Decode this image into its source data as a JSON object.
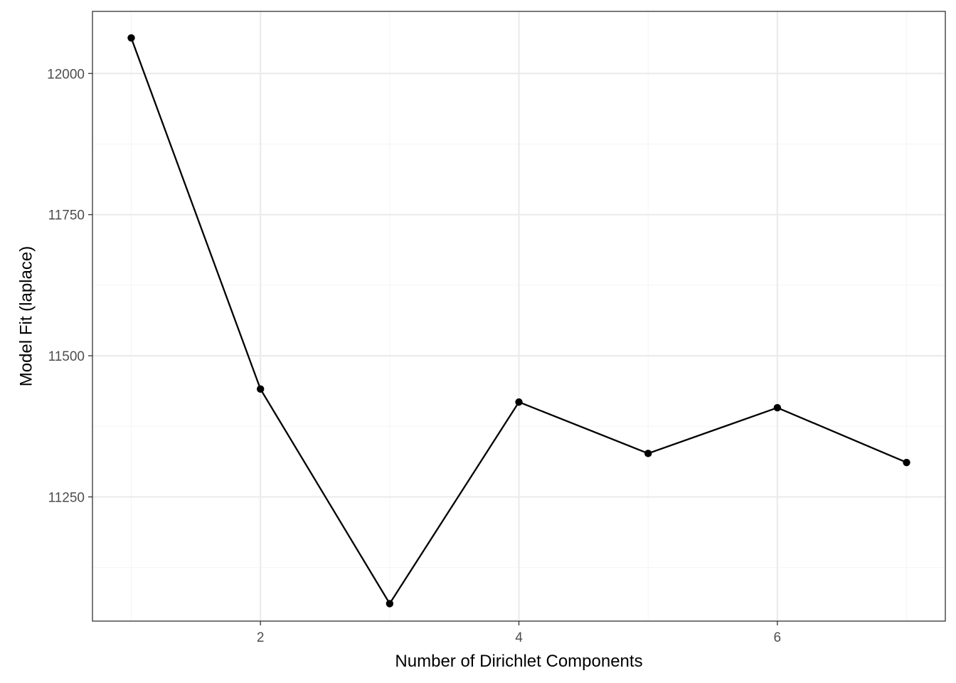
{
  "chart_data": {
    "type": "line",
    "title": "",
    "xlabel": "Number of Dirichlet Components",
    "ylabel": "Model Fit (laplace)",
    "x": [
      1,
      2,
      3,
      4,
      5,
      6,
      7
    ],
    "series": [
      {
        "values": [
          12063,
          11441,
          11061,
          11418,
          11327,
          11408,
          11311
        ]
      }
    ],
    "xlim": [
      0.7,
      7.3
    ],
    "ylim": [
      11030,
      12110
    ],
    "x_ticks": [
      2,
      4,
      6
    ],
    "x_minor": [
      1,
      3,
      5,
      7
    ],
    "y_ticks": [
      11250,
      11500,
      11750,
      12000
    ],
    "y_minor": [
      11125,
      11375,
      11625,
      11875
    ],
    "x_tick_labels": [
      "2",
      "4",
      "6"
    ],
    "y_tick_labels": [
      "11250",
      "11500",
      "11750",
      "12000"
    ],
    "grid": true,
    "legend": "none",
    "colors": {
      "line": "#000000",
      "point": "#000000",
      "grid_major": "#ebebeb",
      "grid_minor": "#f5f5f5",
      "panel_border": "#333333"
    }
  }
}
